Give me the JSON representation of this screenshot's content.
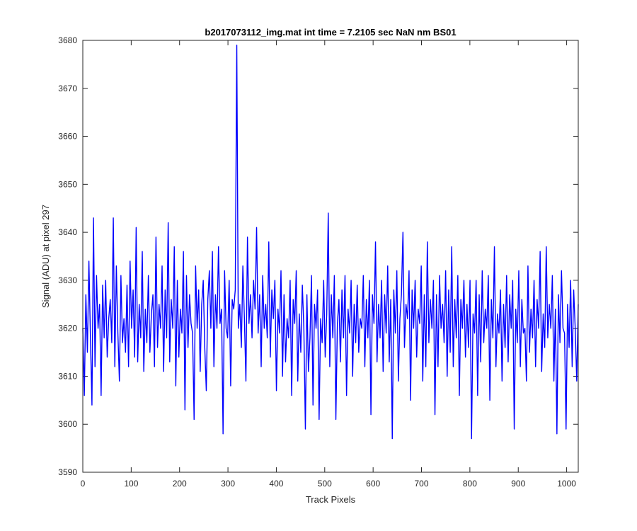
{
  "chart_data": {
    "type": "line",
    "title": "b2017073112_img.mat int time = 7.2105 sec  NaN nm BS01",
    "xlabel": "Track Pixels",
    "ylabel": "Signal (ADU) at pixel 297",
    "xlim": [
      0,
      1024
    ],
    "ylim": [
      3590,
      3680
    ],
    "xticks": [
      0,
      100,
      200,
      300,
      400,
      500,
      600,
      700,
      800,
      900,
      1000
    ],
    "yticks": [
      3590,
      3600,
      3610,
      3620,
      3630,
      3640,
      3650,
      3660,
      3670,
      3680
    ],
    "grid": false,
    "line_color": "#0000ff",
    "series": [
      {
        "values": [
          3620,
          3606,
          3627,
          3615,
          3634,
          3618,
          3604,
          3643,
          3612,
          3631,
          3620,
          3625,
          3606,
          3629,
          3618,
          3630,
          3614,
          3622,
          3626,
          3617,
          3643,
          3612,
          3633,
          3619,
          3609,
          3631,
          3617,
          3622,
          3615,
          3629,
          3612,
          3634,
          3620,
          3628,
          3614,
          3641,
          3613,
          3625,
          3618,
          3636,
          3611,
          3624,
          3617,
          3631,
          3615,
          3623,
          3627,
          3612,
          3639,
          3616,
          3625,
          3620,
          3633,
          3611,
          3628,
          3618,
          3642,
          3613,
          3626,
          3620,
          3637,
          3608,
          3630,
          3614,
          3624,
          3619,
          3636,
          3603,
          3631,
          3616,
          3627,
          3621,
          3619,
          3601,
          3633,
          3620,
          3628,
          3611,
          3625,
          3630,
          3616,
          3607,
          3626,
          3632,
          3620,
          3636,
          3612,
          3627,
          3620,
          3637,
          3621,
          3624,
          3598,
          3632,
          3620,
          3618,
          3630,
          3608,
          3626,
          3624,
          3628,
          3679,
          3620,
          3625,
          3616,
          3633,
          3622,
          3609,
          3639,
          3621,
          3627,
          3618,
          3630,
          3624,
          3641,
          3619,
          3627,
          3612,
          3631,
          3620,
          3625,
          3618,
          3638,
          3614,
          3628,
          3622,
          3630,
          3607,
          3624,
          3619,
          3632,
          3610,
          3627,
          3613,
          3622,
          3618,
          3630,
          3606,
          3626,
          3621,
          3632,
          3609,
          3623,
          3615,
          3629,
          3620,
          3599,
          3627,
          3611,
          3618,
          3631,
          3604,
          3625,
          3620,
          3628,
          3601,
          3622,
          3617,
          3630,
          3614,
          3623,
          3644,
          3612,
          3627,
          3618,
          3631,
          3601,
          3621,
          3626,
          3613,
          3628,
          3618,
          3631,
          3606,
          3624,
          3619,
          3630,
          3610,
          3625,
          3617,
          3629,
          3615,
          3622,
          3620,
          3631,
          3612,
          3626,
          3618,
          3630,
          3602,
          3627,
          3621,
          3638,
          3613,
          3625,
          3618,
          3630,
          3611,
          3627,
          3619,
          3633,
          3613,
          3626,
          3597,
          3628,
          3619,
          3632,
          3609,
          3622,
          3627,
          3640,
          3616,
          3625,
          3622,
          3632,
          3605,
          3628,
          3620,
          3630,
          3614,
          3624,
          3621,
          3633,
          3609,
          3627,
          3612,
          3638,
          3617,
          3626,
          3620,
          3630,
          3602,
          3627,
          3612,
          3631,
          3620,
          3625,
          3617,
          3632,
          3610,
          3628,
          3615,
          3637,
          3612,
          3626,
          3618,
          3631,
          3606,
          3626,
          3620,
          3630,
          3614,
          3625,
          3616,
          3630,
          3597,
          3623,
          3619,
          3630,
          3606,
          3627,
          3613,
          3632,
          3617,
          3624,
          3620,
          3631,
          3605,
          3626,
          3618,
          3637,
          3612,
          3623,
          3619,
          3628,
          3609,
          3625,
          3616,
          3631,
          3613,
          3627,
          3620,
          3630,
          3599,
          3624,
          3617,
          3632,
          3612,
          3626,
          3619,
          3620,
          3609,
          3633,
          3615,
          3624,
          3618,
          3630,
          3612,
          3626,
          3620,
          3636,
          3611,
          3623,
          3616,
          3637,
          3618,
          3625,
          3620,
          3631,
          3609,
          3624,
          3598,
          3627,
          3617,
          3632,
          3620,
          3619,
          3599,
          3625,
          3616,
          3630,
          3612,
          3628,
          3620,
          3609,
          3625
        ]
      }
    ]
  }
}
